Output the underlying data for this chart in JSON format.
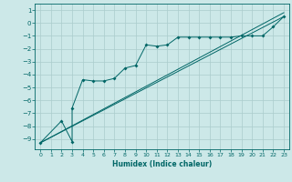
{
  "xlabel": "Humidex (Indice chaleur)",
  "ylabel": "",
  "bg_color": "#cce8e8",
  "grid_color": "#aacccc",
  "line_color": "#006666",
  "xlim": [
    -0.5,
    23.5
  ],
  "ylim": [
    -9.8,
    1.5
  ],
  "yticks": [
    1,
    0,
    -1,
    -2,
    -3,
    -4,
    -5,
    -6,
    -7,
    -8,
    -9
  ],
  "xticks": [
    0,
    1,
    2,
    3,
    4,
    5,
    6,
    7,
    8,
    9,
    10,
    11,
    12,
    13,
    14,
    15,
    16,
    17,
    18,
    19,
    20,
    21,
    22,
    23
  ],
  "series1_x": [
    0,
    2,
    3,
    3,
    4,
    5,
    6,
    7,
    8,
    9,
    10,
    11,
    12,
    13,
    14,
    15,
    16,
    17,
    18,
    19,
    20,
    21,
    22,
    23
  ],
  "series1_y": [
    -9.3,
    -7.6,
    -9.2,
    -6.6,
    -4.4,
    -4.5,
    -4.5,
    -4.3,
    -3.5,
    -3.3,
    -1.7,
    -1.8,
    -1.7,
    -1.1,
    -1.1,
    -1.1,
    -1.1,
    -1.1,
    -1.1,
    -1.0,
    -1.0,
    -1.0,
    -0.3,
    0.5
  ],
  "series2_x": [
    0,
    23
  ],
  "series2_y": [
    -9.3,
    0.5
  ],
  "series3_x": [
    0,
    23
  ],
  "series3_y": [
    -9.3,
    0.8
  ]
}
